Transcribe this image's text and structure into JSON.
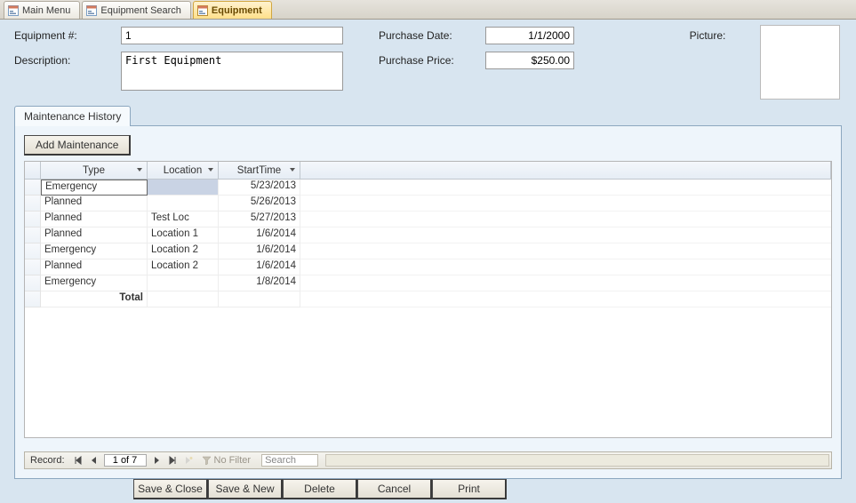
{
  "tabs": {
    "main_menu": "Main Menu",
    "equipment_search": "Equipment Search",
    "equipment": "Equipment"
  },
  "form": {
    "equipment_no_label": "Equipment #:",
    "equipment_no": "1",
    "description_label": "Description:",
    "description": "First Equipment",
    "purchase_date_label": "Purchase Date:",
    "purchase_date": "1/1/2000",
    "purchase_price_label": "Purchase Price:",
    "purchase_price": "$250.00",
    "picture_label": "Picture:"
  },
  "history": {
    "tab_label": "Maintenance History",
    "add_button": "Add Maintenance",
    "columns": {
      "type": "Type",
      "location": "Location",
      "starttime": "StartTime"
    },
    "rows": [
      {
        "type": "Emergency",
        "location": "",
        "starttime": "5/23/2013"
      },
      {
        "type": "Planned",
        "location": "",
        "starttime": "5/26/2013"
      },
      {
        "type": "Planned",
        "location": "Test Loc",
        "starttime": "5/27/2013"
      },
      {
        "type": "Planned",
        "location": "Location 1",
        "starttime": "1/6/2014"
      },
      {
        "type": "Emergency",
        "location": "Location 2",
        "starttime": "1/6/2014"
      },
      {
        "type": "Planned",
        "location": "Location 2",
        "starttime": "1/6/2014"
      },
      {
        "type": "Emergency",
        "location": "",
        "starttime": "1/8/2014"
      }
    ],
    "total_label": "Total",
    "nav": {
      "label": "Record:",
      "position": "1 of 7",
      "no_filter": "No Filter",
      "search_placeholder": "Search"
    }
  },
  "actions": {
    "save_close": "Save & Close",
    "save_new": "Save & New",
    "delete": "Delete",
    "cancel": "Cancel",
    "print": "Print"
  }
}
